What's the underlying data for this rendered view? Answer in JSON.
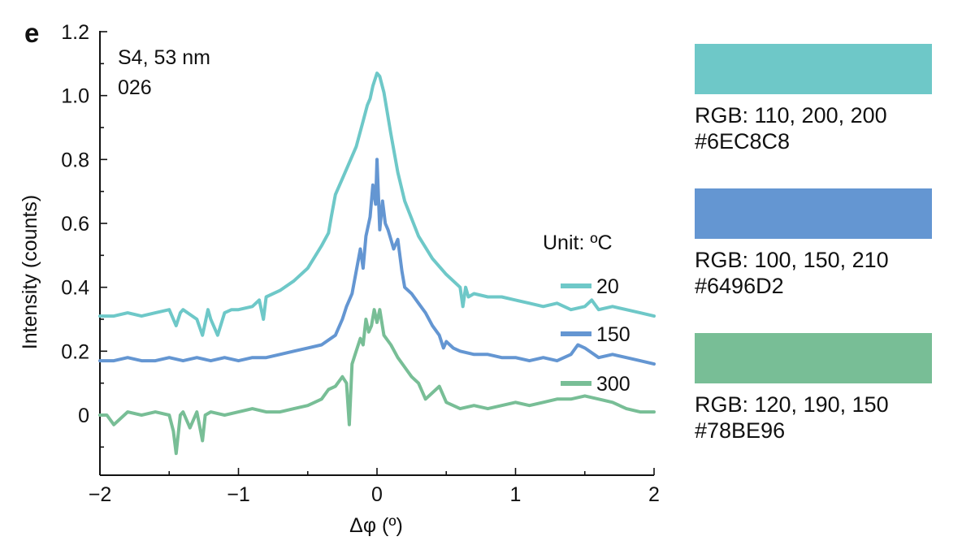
{
  "panel_label": "e",
  "chart_data": {
    "type": "line",
    "annotations": [
      "S4, 53 nm",
      "026"
    ],
    "xlabel": "Δφ (º)",
    "ylabel": "Intensity (counts)",
    "xlim": [
      -2,
      2
    ],
    "ylim": [
      -0.18,
      1.2
    ],
    "x_ticks": [
      -2,
      -1,
      0,
      1,
      2
    ],
    "x_tick_labels": [
      "−2",
      "−1",
      "0",
      "1",
      "2"
    ],
    "y_ticks": [
      0,
      0.2,
      0.4,
      0.6,
      0.8,
      1.0,
      1.2
    ],
    "y_tick_labels": [
      "0",
      "0.2",
      "0.4",
      "0.6",
      "0.8",
      "1.0",
      "1.2"
    ],
    "legend_title": "Unit: ºC",
    "legend_position": "right",
    "grid": false,
    "series": [
      {
        "name": "20",
        "color": "#6EC8C8",
        "x": [
          -2.0,
          -1.9,
          -1.8,
          -1.7,
          -1.6,
          -1.5,
          -1.45,
          -1.42,
          -1.4,
          -1.3,
          -1.26,
          -1.22,
          -1.2,
          -1.15,
          -1.1,
          -1.05,
          -1.0,
          -0.9,
          -0.85,
          -0.82,
          -0.8,
          -0.7,
          -0.6,
          -0.5,
          -0.4,
          -0.35,
          -0.33,
          -0.3,
          -0.25,
          -0.2,
          -0.15,
          -0.1,
          -0.07,
          -0.05,
          -0.03,
          0.0,
          0.02,
          0.05,
          0.1,
          0.15,
          0.2,
          0.3,
          0.4,
          0.5,
          0.6,
          0.62,
          0.64,
          0.66,
          0.7,
          0.8,
          0.9,
          1.0,
          1.1,
          1.2,
          1.3,
          1.4,
          1.5,
          1.55,
          1.6,
          1.7,
          1.8,
          1.9,
          2.0
        ],
        "y": [
          0.31,
          0.31,
          0.32,
          0.31,
          0.32,
          0.33,
          0.28,
          0.32,
          0.33,
          0.3,
          0.25,
          0.33,
          0.3,
          0.25,
          0.32,
          0.33,
          0.33,
          0.34,
          0.36,
          0.3,
          0.37,
          0.39,
          0.42,
          0.46,
          0.53,
          0.57,
          0.62,
          0.69,
          0.74,
          0.79,
          0.84,
          0.92,
          0.97,
          0.99,
          1.03,
          1.07,
          1.06,
          1.01,
          0.88,
          0.76,
          0.67,
          0.56,
          0.49,
          0.44,
          0.4,
          0.34,
          0.4,
          0.37,
          0.38,
          0.37,
          0.37,
          0.36,
          0.35,
          0.34,
          0.35,
          0.33,
          0.34,
          0.36,
          0.33,
          0.34,
          0.33,
          0.32,
          0.31
        ]
      },
      {
        "name": "150",
        "color": "#6496D2",
        "x": [
          -2.0,
          -1.9,
          -1.8,
          -1.7,
          -1.6,
          -1.5,
          -1.4,
          -1.3,
          -1.2,
          -1.1,
          -1.0,
          -0.9,
          -0.8,
          -0.7,
          -0.6,
          -0.5,
          -0.4,
          -0.3,
          -0.25,
          -0.22,
          -0.2,
          -0.18,
          -0.15,
          -0.12,
          -0.1,
          -0.08,
          -0.05,
          -0.03,
          -0.01,
          0.0,
          0.02,
          0.04,
          0.06,
          0.08,
          0.1,
          0.12,
          0.15,
          0.18,
          0.2,
          0.25,
          0.3,
          0.35,
          0.4,
          0.45,
          0.48,
          0.5,
          0.55,
          0.6,
          0.7,
          0.8,
          0.9,
          1.0,
          1.1,
          1.2,
          1.3,
          1.4,
          1.45,
          1.5,
          1.6,
          1.7,
          1.8,
          1.9,
          2.0
        ],
        "y": [
          0.17,
          0.17,
          0.18,
          0.17,
          0.17,
          0.18,
          0.17,
          0.18,
          0.17,
          0.18,
          0.17,
          0.18,
          0.18,
          0.19,
          0.2,
          0.21,
          0.22,
          0.25,
          0.3,
          0.34,
          0.36,
          0.38,
          0.45,
          0.52,
          0.46,
          0.56,
          0.62,
          0.72,
          0.66,
          0.8,
          0.58,
          0.67,
          0.6,
          0.58,
          0.55,
          0.52,
          0.55,
          0.45,
          0.4,
          0.38,
          0.35,
          0.32,
          0.28,
          0.25,
          0.21,
          0.23,
          0.21,
          0.2,
          0.19,
          0.19,
          0.18,
          0.18,
          0.17,
          0.18,
          0.17,
          0.19,
          0.22,
          0.21,
          0.18,
          0.19,
          0.18,
          0.17,
          0.16
        ]
      },
      {
        "name": "300",
        "color": "#78BE96",
        "x": [
          -2.0,
          -1.95,
          -1.9,
          -1.8,
          -1.7,
          -1.6,
          -1.5,
          -1.47,
          -1.45,
          -1.42,
          -1.4,
          -1.35,
          -1.3,
          -1.26,
          -1.24,
          -1.2,
          -1.1,
          -1.0,
          -0.9,
          -0.8,
          -0.7,
          -0.6,
          -0.5,
          -0.4,
          -0.35,
          -0.3,
          -0.25,
          -0.22,
          -0.2,
          -0.18,
          -0.15,
          -0.12,
          -0.1,
          -0.08,
          -0.06,
          -0.04,
          -0.02,
          0.0,
          0.02,
          0.05,
          0.1,
          0.15,
          0.2,
          0.25,
          0.3,
          0.35,
          0.4,
          0.45,
          0.5,
          0.6,
          0.7,
          0.8,
          0.9,
          1.0,
          1.1,
          1.2,
          1.3,
          1.4,
          1.5,
          1.6,
          1.7,
          1.8,
          1.9,
          2.0
        ],
        "y": [
          0.0,
          0.0,
          -0.03,
          0.01,
          0.0,
          0.01,
          0.0,
          -0.05,
          -0.12,
          0.0,
          0.01,
          -0.04,
          0.01,
          -0.08,
          0.0,
          0.01,
          0.0,
          0.01,
          0.02,
          0.01,
          0.01,
          0.02,
          0.03,
          0.05,
          0.08,
          0.09,
          0.12,
          0.1,
          -0.03,
          0.16,
          0.2,
          0.24,
          0.22,
          0.3,
          0.26,
          0.28,
          0.33,
          0.29,
          0.33,
          0.25,
          0.22,
          0.18,
          0.15,
          0.12,
          0.1,
          0.05,
          0.07,
          0.09,
          0.04,
          0.02,
          0.03,
          0.02,
          0.03,
          0.04,
          0.03,
          0.04,
          0.05,
          0.05,
          0.06,
          0.05,
          0.04,
          0.02,
          0.01,
          0.01
        ]
      }
    ]
  },
  "swatches": [
    {
      "rgb_text": "RGB: 110, 200, 200",
      "hex_text": "#6EC8C8",
      "color": "#6EC8C8"
    },
    {
      "rgb_text": "RGB: 100, 150, 210",
      "hex_text": "#6496D2",
      "color": "#6496D2"
    },
    {
      "rgb_text": "RGB: 120, 190, 150",
      "hex_text": "#78BE96",
      "color": "#78BE96"
    }
  ]
}
